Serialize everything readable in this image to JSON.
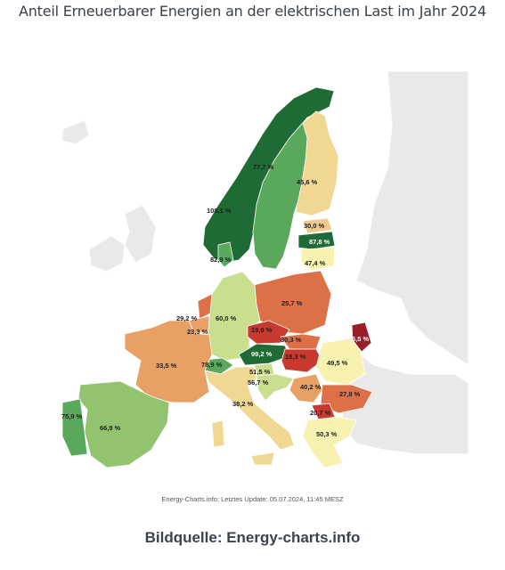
{
  "title": "Anteil Erneuerbarer Energien an der elektrischen Last im Jahr 2024",
  "update_text": "Energy-Charts.info; Letztes Update: 05.07.2024, 11:45 MESZ",
  "source_text": "Bildquelle: Energy-charts.info",
  "colors": {
    "dark_green": "#1f6b35",
    "green": "#5aa85c",
    "light_green": "#92c46f",
    "yellow_green": "#c9df8e",
    "pale_yellow": "#f7f2b0",
    "light_orange": "#f0c98c",
    "orange": "#e9a064",
    "dark_orange": "#de7047",
    "red": "#c8392f",
    "dark_red": "#9a1d2a",
    "non_eu": "#e8e8e8"
  },
  "regions": {
    "norway": "108,1 %",
    "sweden": "77,7 %",
    "finland": "45,6 %",
    "estonia": "30,0 %",
    "latvia": "87,8 %",
    "lithuania": "47,4 %",
    "denmark": "82,9 %",
    "poland": "25,7 %",
    "netherlands": "29,2 %",
    "belgium": "23,3 %",
    "germany": "60,0 %",
    "czechia": "19,9 %",
    "slovakia": "30,3 %",
    "moldova": "6,5 %",
    "austria": "99,2 %",
    "hungary": "18,3 %",
    "romania": "49,5 %",
    "france": "33,5 %",
    "switzerland": "78,9 %",
    "slovenia": "51,5 %",
    "croatia": "56,7 %",
    "serbia": "40,2 %",
    "bulgaria": "27,8 %",
    "north_macedonia": "20,7 %",
    "italy": "38,2 %",
    "greece": "50,3 %",
    "portugal": "75,9 %",
    "spain": "66,9 %"
  }
}
